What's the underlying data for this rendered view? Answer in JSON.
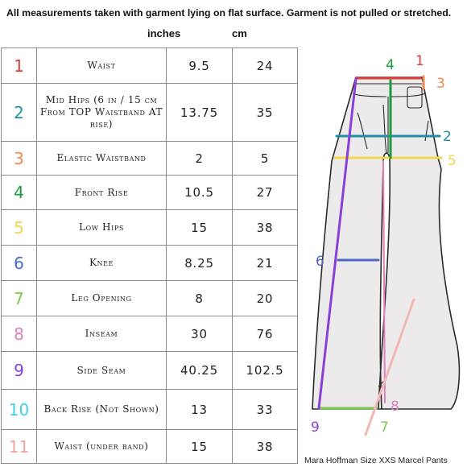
{
  "header": {
    "note": "All measurements taken with garment lying on flat surface.  Garment is not pulled or stretched.",
    "inches_label": "inches",
    "cm_label": "cm"
  },
  "rows": [
    {
      "num": "1",
      "color": "#e03a3a",
      "label": "Waist",
      "inches": "9.5",
      "cm": "24"
    },
    {
      "num": "2",
      "color": "#1f8fa6",
      "label": "Mid Hips (6 in / 15 cm From TOP Waistband AT rise)",
      "inches": "13.75",
      "cm": "35"
    },
    {
      "num": "3",
      "color": "#ee8a52",
      "label": "Elastic Waistband",
      "inches": "2",
      "cm": "5"
    },
    {
      "num": "4",
      "color": "#1c9a3c",
      "label": "Front Rise",
      "inches": "10.5",
      "cm": "27"
    },
    {
      "num": "5",
      "color": "#f2d84e",
      "label": "Low Hips",
      "inches": "15",
      "cm": "38"
    },
    {
      "num": "6",
      "color": "#4a68c8",
      "label": "Knee",
      "inches": "8.25",
      "cm": "21"
    },
    {
      "num": "7",
      "color": "#7cc94e",
      "label": "Leg Opening",
      "inches": "8",
      "cm": "20"
    },
    {
      "num": "8",
      "color": "#e080bd",
      "label": "Inseam",
      "inches": "30",
      "cm": "76"
    },
    {
      "num": "9",
      "color": "#8a3fd6",
      "label": "Side Seam",
      "inches": "40.25",
      "cm": "102.5"
    },
    {
      "num": "10",
      "color": "#3fd0e0",
      "label": "Back Rise (Not Shown)",
      "inches": "13",
      "cm": "33"
    },
    {
      "num": "11",
      "color": "#f4a3a3",
      "label": "Waist (under band)",
      "inches": "15",
      "cm": "38"
    }
  ],
  "diagram": {
    "labels": [
      "1",
      "2",
      "3",
      "4",
      "5",
      "6",
      "7",
      "8",
      "9"
    ],
    "caption": "Mara Hoffman Size XXS Marcel Pants"
  }
}
